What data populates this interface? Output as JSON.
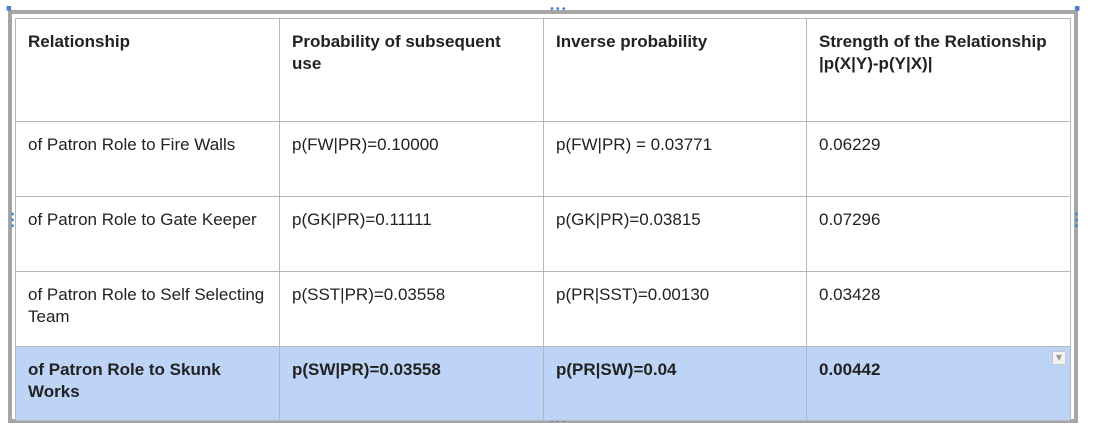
{
  "table": {
    "headers": [
      "Relationship",
      "Probability of subsequent use",
      "Inverse probability",
      "Strength of the Relationship |p(X|Y)-p(Y|X)|"
    ],
    "rows": [
      [
        "of Patron Role to Fire Walls",
        "p(FW|PR)=0.10000",
        "p(FW|PR) = 0.03771",
        "0.06229"
      ],
      [
        "of Patron Role to Gate Keeper",
        "p(GK|PR)=0.11111",
        "p(GK|PR)=0.03815",
        "0.07296"
      ],
      [
        "of Patron Role to Self Selecting Team",
        "p(SST|PR)=0.03558",
        "p(PR|SST)=0.00130",
        "0.03428"
      ],
      [
        "of Patron Role to Skunk Works",
        "p(SW|PR)=0.03558",
        "p(PR|SW)=0.04",
        "0.00442"
      ]
    ],
    "selected_row_index": 3
  },
  "icons": {
    "resize_handle": "drag-handle-icon",
    "cell_dropdown": "chevron-down-icon"
  },
  "colors": {
    "selection": "#bed4f6",
    "frame": "#a6a6a6",
    "handle": "#4a7fd4"
  }
}
